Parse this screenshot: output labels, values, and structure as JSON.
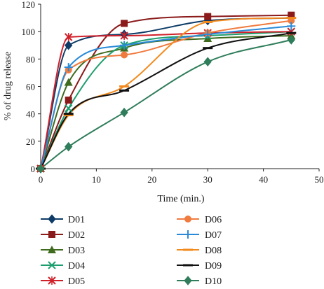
{
  "chart_data": {
    "type": "line",
    "title": "",
    "xlabel": "Time (min.)",
    "ylabel": "% of drug release",
    "xlim": [
      0,
      50
    ],
    "ylim": [
      0,
      120
    ],
    "x_ticks": [
      "0",
      "10",
      "20",
      "30",
      "40",
      "50"
    ],
    "y_ticks": [
      "0",
      "20",
      "40",
      "60",
      "80",
      "100",
      "120"
    ],
    "grid": false,
    "legend_position": "bottom, two columns",
    "series": [
      {
        "name": "D01",
        "color": "#0d3b66",
        "marker": "diamond",
        "x": [
          0,
          5,
          15,
          30,
          45
        ],
        "y": [
          0,
          90,
          98,
          108,
          110
        ]
      },
      {
        "name": "D02",
        "color": "#8b1a1a",
        "marker": "square",
        "x": [
          0,
          5,
          15,
          30,
          45
        ],
        "y": [
          0,
          50,
          106,
          111,
          112
        ]
      },
      {
        "name": "D03",
        "color": "#3e6b1e",
        "marker": "triangle",
        "x": [
          0,
          5,
          15,
          30,
          45
        ],
        "y": [
          0,
          63,
          88,
          95,
          97
        ]
      },
      {
        "name": "D04",
        "color": "#1e9e6e",
        "marker": "x",
        "x": [
          0,
          5,
          15,
          30,
          45
        ],
        "y": [
          0,
          44,
          90,
          97,
          100
        ]
      },
      {
        "name": "D05",
        "color": "#d0202a",
        "marker": "asterisk",
        "x": [
          0,
          5,
          15,
          30,
          45
        ],
        "y": [
          0,
          96,
          97,
          99,
          100
        ]
      },
      {
        "name": "D06",
        "color": "#f07b3f",
        "marker": "circle",
        "x": [
          0,
          5,
          15,
          30,
          45
        ],
        "y": [
          0,
          72,
          83,
          99,
          108
        ]
      },
      {
        "name": "D07",
        "color": "#2a8ad8",
        "marker": "plus",
        "x": [
          0,
          5,
          15,
          30,
          45
        ],
        "y": [
          0,
          74,
          90,
          98,
          104
        ]
      },
      {
        "name": "D08",
        "color": "#f28a1e",
        "marker": "dash",
        "x": [
          0,
          5,
          15,
          30,
          45
        ],
        "y": [
          0,
          39,
          60,
          107,
          110
        ]
      },
      {
        "name": "D09",
        "color": "#111111",
        "marker": "dash",
        "x": [
          0,
          5,
          15,
          30,
          45
        ],
        "y": [
          0,
          40,
          57,
          88,
          99
        ]
      },
      {
        "name": "D10",
        "color": "#2f7d5a",
        "marker": "diamond",
        "x": [
          0,
          5,
          15,
          30,
          45
        ],
        "y": [
          0,
          16,
          41,
          78,
          94
        ]
      }
    ]
  }
}
